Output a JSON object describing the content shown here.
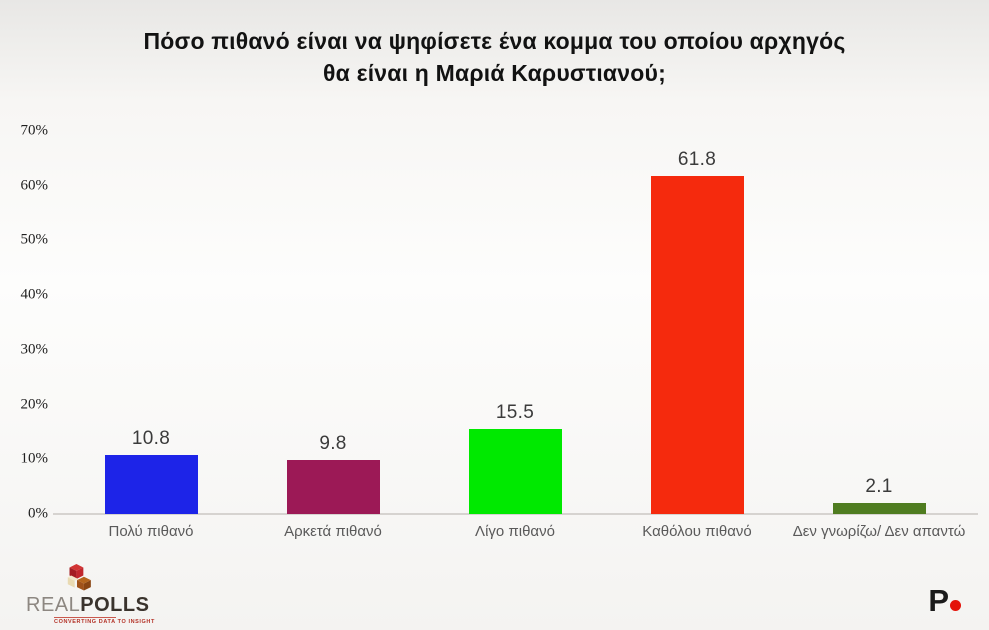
{
  "title": {
    "line1": "Πόσο πιθανό είναι να ψηφίσετε ένα κομμα του οποίου αρχηγός",
    "line2": "θα είναι η Μαριά Καρυστιανού;"
  },
  "chart_data": {
    "type": "bar",
    "title": "Πόσο πιθανό είναι να ψηφίσετε ένα κομμα του οποίου αρχηγός θα είναι η Μαριά Καρυστιανού;",
    "categories": [
      "Πολύ πιθανό",
      "Αρκετά πιθανό",
      "Λίγο πιθανό",
      "Καθόλου πιθανό",
      "Δεν γνωρίζω/ Δεν απαντώ"
    ],
    "values": [
      10.8,
      9.8,
      15.5,
      61.8,
      2.1
    ],
    "value_labels": [
      "10.8",
      "9.8",
      "15.5",
      "61.8",
      "2.1"
    ],
    "bar_colors": [
      "#1d24e8",
      "#9c1956",
      "#00e900",
      "#f52a0d",
      "#4f7c20"
    ],
    "xlabel": "",
    "ylabel": "",
    "ylim": [
      0,
      70
    ],
    "y_ticks": [
      "0%",
      "10%",
      "20%",
      "30%",
      "40%",
      "50%",
      "60%",
      "70%"
    ],
    "grid": false,
    "legend": "none"
  },
  "footer": {
    "realpolls": {
      "brand_prefix": "REAL",
      "brand_suffix": "POLLS",
      "tagline": "CONVERTING DATA TO INSIGHT"
    },
    "pronews": {
      "letter": "P"
    }
  },
  "colors": {
    "axis_line": "#d6d3d0",
    "tick_label": "#1f1f1f",
    "value_label": "#3b3b3b",
    "category_label": "#5a5a5a",
    "title_text": "#121212"
  }
}
